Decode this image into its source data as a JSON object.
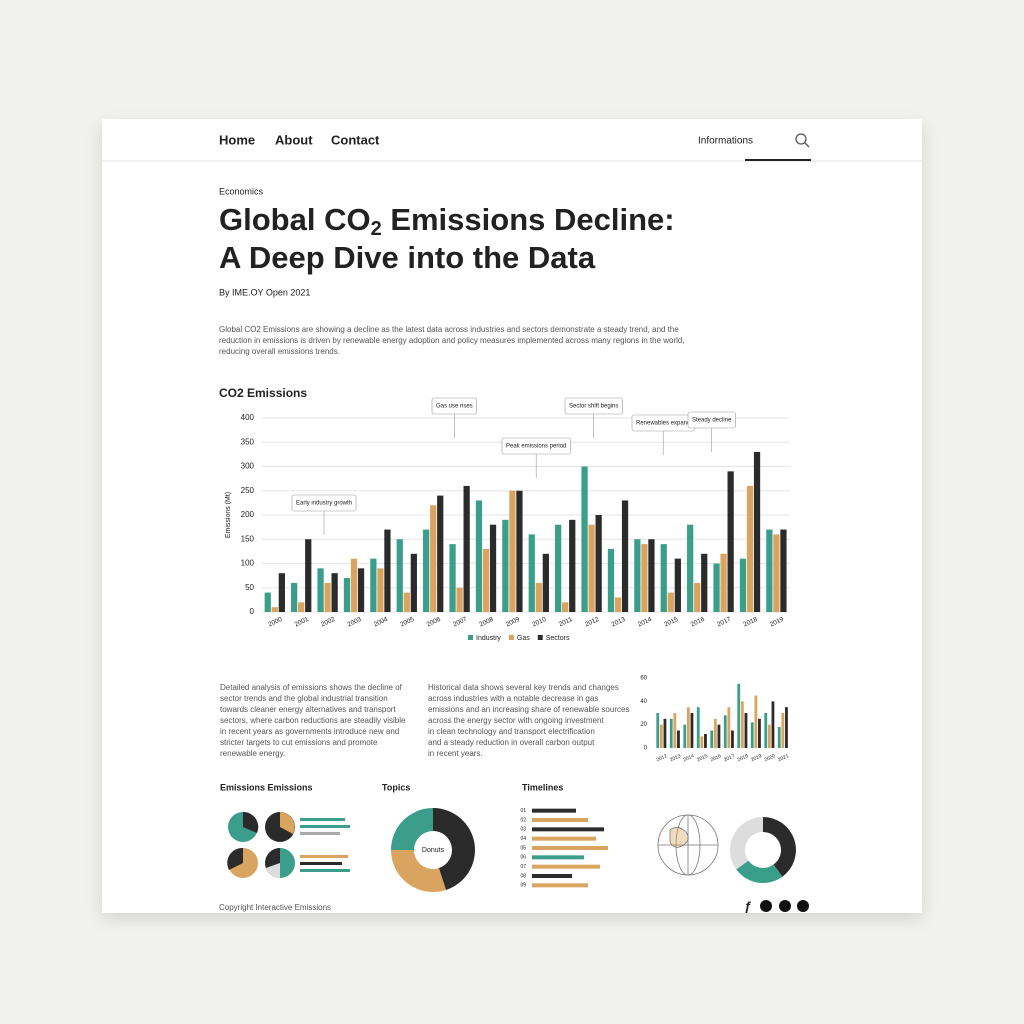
{
  "nav": {
    "links": [
      "Home",
      "About",
      "Contact"
    ],
    "search_label": "Informations"
  },
  "header": {
    "category": "Economics",
    "title_pre": "Global CO",
    "title_sub": "2",
    "title_post": " Emissions Decline:",
    "title_line2": "A Deep Dive into the Data",
    "byline": "By IME.OY Open 2021"
  },
  "intro": [
    "Global CO2 Emissions are showing a decline as the latest data across industries and sectors demonstrate a steady trend, and the",
    "reduction in emissions is driven by renewable energy adoption and policy measures implemented across many regions in the world,",
    "reducing overall emissions trends."
  ],
  "columns": [
    [
      "Detailed analysis of emissions shows the decline of",
      "sector trends and the global industrial transition",
      "towards cleaner energy alternatives and transport",
      "sectors, where carbon reductions are steadily visible",
      "in recent years as governments introduce new and",
      "stricter targets to cut emissions and promote",
      "renewable energy."
    ],
    [
      "Historical data shows several key trends and changes",
      "across industries with a notable decrease in gas",
      "emissions and an increasing share of renewable sources",
      "across the energy sector with ongoing investment",
      "in clean technology and transport electrification",
      "and a steady reduction in overall carbon output",
      "in recent years."
    ]
  ],
  "sections": [
    "Emissions Emissions",
    "Topics",
    "Timelines"
  ],
  "footer": "Copyright Interactive Emissions",
  "chart_data": [
    {
      "type": "bar",
      "title": "CO2 Emissions",
      "y_label": "Emissions (Mt)",
      "grid": true,
      "categories": [
        "2000",
        "2001",
        "2002",
        "2003",
        "2004",
        "2005",
        "2006",
        "2007",
        "2008",
        "2009",
        "2010",
        "2011",
        "2012",
        "2013",
        "2014",
        "2015",
        "2016",
        "2017",
        "2018",
        "2019"
      ],
      "series": [
        {
          "name": "Industry",
          "color": "#3a9e8a",
          "values": [
            40,
            60,
            90,
            70,
            110,
            150,
            170,
            140,
            230,
            190,
            160,
            180,
            300,
            130,
            150,
            140,
            180,
            100,
            110,
            170
          ]
        },
        {
          "name": "Gas",
          "color": "#d9a45f",
          "values": [
            10,
            20,
            60,
            110,
            90,
            40,
            220,
            50,
            130,
            250,
            60,
            20,
            180,
            30,
            140,
            40,
            60,
            120,
            260,
            160
          ]
        },
        {
          "name": "Sectors",
          "color": "#2b2b2b",
          "values": [
            80,
            150,
            80,
            90,
            170,
            120,
            240,
            260,
            180,
            250,
            120,
            190,
            200,
            230,
            150,
            110,
            120,
            290,
            330,
            170
          ]
        }
      ],
      "ylim": [
        0,
        400
      ],
      "yticks": [
        0,
        50,
        100,
        150,
        200,
        250,
        300,
        350,
        400
      ],
      "annotations": [
        "Early industry growth",
        "Gas use rises",
        "Peak emissions period",
        "Sector shift begins",
        "Renewables expand",
        "Steady decline"
      ]
    },
    {
      "type": "bar",
      "categories": [
        "2012",
        "2013",
        "2014",
        "2015",
        "2016",
        "2017",
        "2018",
        "2019",
        "2020",
        "2021"
      ],
      "series": [
        {
          "name": "Industry",
          "color": "#3a9e8a",
          "values": [
            30,
            25,
            20,
            35,
            15,
            28,
            55,
            22,
            30,
            18
          ]
        },
        {
          "name": "Gas",
          "color": "#d9a45f",
          "values": [
            20,
            30,
            35,
            10,
            25,
            35,
            40,
            45,
            20,
            30
          ]
        },
        {
          "name": "Sectors",
          "color": "#2b2b2b",
          "values": [
            25,
            15,
            30,
            12,
            20,
            15,
            30,
            25,
            40,
            35
          ]
        }
      ],
      "ylim": [
        0,
        60
      ],
      "yticks": [
        0,
        20,
        40,
        60
      ]
    },
    {
      "type": "donut",
      "center_label": "Donuts",
      "values": [
        45,
        30,
        25
      ],
      "colors": [
        "#2b2b2b",
        "#d9a45f",
        "#3a9e8a"
      ]
    },
    {
      "type": "hbar",
      "categories": [
        "01",
        "02",
        "03",
        "04",
        "05",
        "06",
        "07",
        "08",
        "09"
      ],
      "values": [
        55,
        70,
        90,
        80,
        95,
        65,
        85,
        50,
        70
      ],
      "colors": [
        "#2b2b2b",
        "#d9a45f",
        "#2b2b2b",
        "#d9a45f",
        "#d9a45f",
        "#3a9e8a",
        "#d9a45f",
        "#2b2b2b",
        "#d9a45f"
      ],
      "xlim": [
        0,
        100
      ]
    },
    {
      "type": "donut",
      "values": [
        40,
        25,
        35
      ],
      "colors": [
        "#2b2b2b",
        "#3a9e8a",
        "#dddddd"
      ]
    }
  ]
}
